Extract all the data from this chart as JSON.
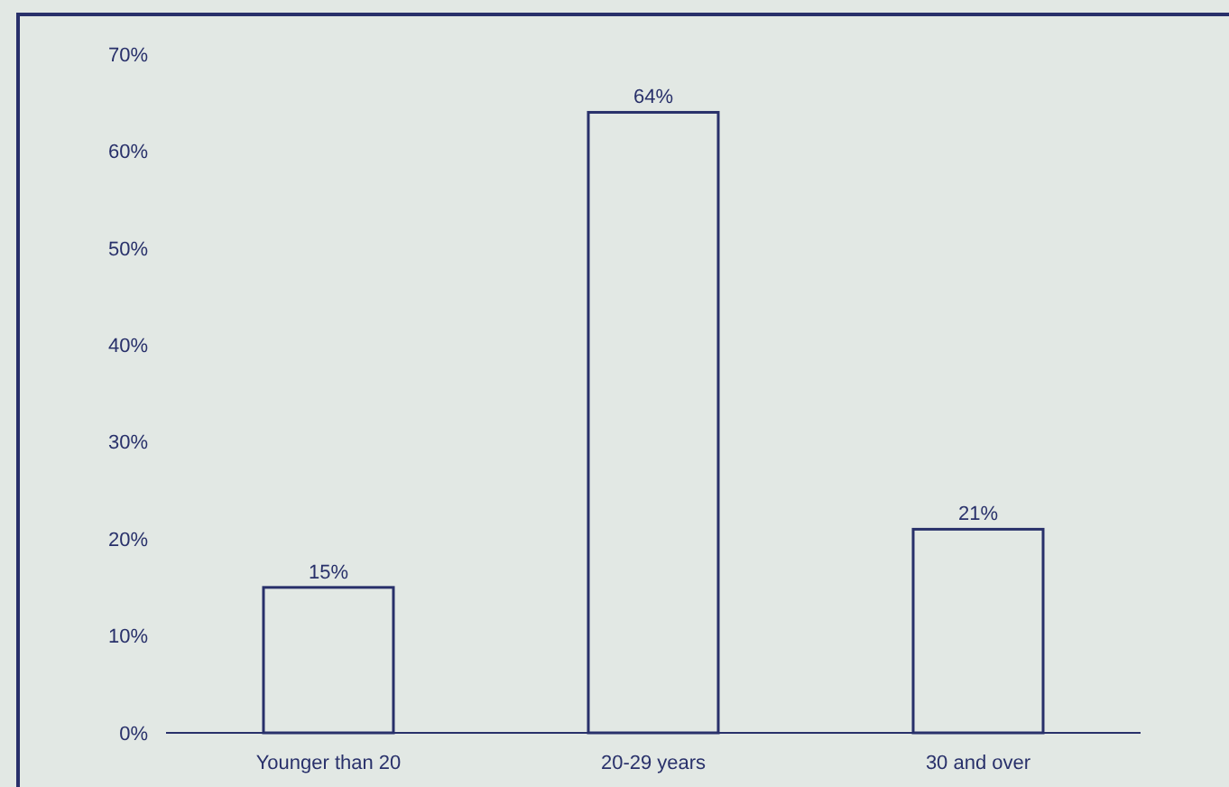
{
  "chart_data": {
    "type": "bar",
    "categories": [
      "Younger than 20",
      "20-29 years",
      "30 and over"
    ],
    "values": [
      15,
      64,
      21
    ],
    "value_labels": [
      "15%",
      "64%",
      "21%"
    ],
    "color": "#28306a",
    "ylim": [
      0,
      70
    ],
    "yticks": [
      {
        "value": 0,
        "label": "0%"
      },
      {
        "value": 10,
        "label": "10%"
      },
      {
        "value": 20,
        "label": "20%"
      },
      {
        "value": 30,
        "label": "30%"
      },
      {
        "value": 40,
        "label": "40%"
      },
      {
        "value": 50,
        "label": "50%"
      },
      {
        "value": 60,
        "label": "60%"
      },
      {
        "value": 70,
        "label": "70%"
      }
    ],
    "grid": false
  }
}
